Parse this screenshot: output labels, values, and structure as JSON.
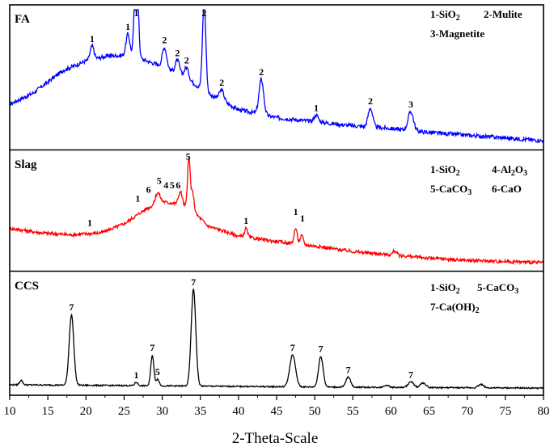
{
  "chart_data": {
    "type": "line",
    "xlabel": "2-Theta-Scale",
    "xlim": [
      10,
      80
    ],
    "x_ticks": [
      "10",
      "15",
      "20",
      "25",
      "30",
      "35",
      "40",
      "45",
      "50",
      "55",
      "60",
      "65",
      "70",
      "75",
      "80"
    ],
    "panels": [
      {
        "name": "FA",
        "color": "#0000ff",
        "legend": [
          "1-SiO2",
          "2-Mulite",
          "3-Magnetite"
        ],
        "baseline": [
          [
            10,
            0.3
          ],
          [
            13,
            0.38
          ],
          [
            17,
            0.55
          ],
          [
            20,
            0.62
          ],
          [
            23,
            0.66
          ],
          [
            26,
            0.66
          ],
          [
            28,
            0.62
          ],
          [
            30,
            0.58
          ],
          [
            33,
            0.5
          ],
          [
            36,
            0.38
          ],
          [
            40,
            0.26
          ],
          [
            45,
            0.2
          ],
          [
            50,
            0.17
          ],
          [
            55,
            0.14
          ],
          [
            60,
            0.12
          ],
          [
            65,
            0.09
          ],
          [
            70,
            0.07
          ],
          [
            75,
            0.05
          ],
          [
            80,
            0.03
          ]
        ],
        "peaks": [
          {
            "x": 20.8,
            "h": 0.1,
            "w": 0.25,
            "label": "1"
          },
          {
            "x": 25.5,
            "h": 0.16,
            "w": 0.25,
            "label": "1"
          },
          {
            "x": 26.6,
            "h": 0.96,
            "w": 0.22,
            "label": "1"
          },
          {
            "x": 30.3,
            "h": 0.15,
            "w": 0.28,
            "label": "2"
          },
          {
            "x": 32.0,
            "h": 0.1,
            "w": 0.28,
            "label": "2"
          },
          {
            "x": 33.2,
            "h": 0.08,
            "w": 0.28,
            "label": "2"
          },
          {
            "x": 35.5,
            "h": 0.66,
            "w": 0.22,
            "label": "2"
          },
          {
            "x": 37.8,
            "h": 0.08,
            "w": 0.3,
            "label": "2"
          },
          {
            "x": 43.0,
            "h": 0.26,
            "w": 0.3,
            "label": "2"
          },
          {
            "x": 50.2,
            "h": 0.05,
            "w": 0.3,
            "label": "1"
          },
          {
            "x": 57.3,
            "h": 0.14,
            "w": 0.3,
            "label": "2"
          },
          {
            "x": 62.6,
            "h": 0.14,
            "w": 0.35,
            "label": "3"
          }
        ]
      },
      {
        "name": "Slag",
        "color": "#ff0000",
        "legend": [
          "1-SiO2",
          "4-Al2O3",
          "5-CaCO3",
          "6-CaO"
        ],
        "baseline": [
          [
            10,
            0.34
          ],
          [
            14,
            0.3
          ],
          [
            18,
            0.28
          ],
          [
            22,
            0.3
          ],
          [
            25,
            0.38
          ],
          [
            28,
            0.52
          ],
          [
            30,
            0.58
          ],
          [
            32,
            0.56
          ],
          [
            34,
            0.5
          ],
          [
            36,
            0.36
          ],
          [
            40,
            0.27
          ],
          [
            45,
            0.22
          ],
          [
            50,
            0.18
          ],
          [
            55,
            0.13
          ],
          [
            60,
            0.1
          ],
          [
            65,
            0.07
          ],
          [
            70,
            0.05
          ],
          [
            75,
            0.04
          ],
          [
            80,
            0.03
          ]
        ],
        "peaks": [
          {
            "x": 29.4,
            "h": 0.1,
            "w": 0.3,
            "label": "5"
          },
          {
            "x": 32.4,
            "h": 0.12,
            "w": 0.25,
            "label": "6"
          },
          {
            "x": 33.5,
            "h": 0.46,
            "w": 0.18,
            "label": "5"
          },
          {
            "x": 34.0,
            "h": 0.16,
            "w": 0.18,
            "label": ""
          },
          {
            "x": 41.0,
            "h": 0.08,
            "w": 0.2,
            "label": "1"
          },
          {
            "x": 47.5,
            "h": 0.14,
            "w": 0.2,
            "label": "1"
          },
          {
            "x": 48.3,
            "h": 0.08,
            "w": 0.2,
            "label": "1"
          },
          {
            "x": 60.5,
            "h": 0.04,
            "w": 0.25,
            "label": ""
          }
        ],
        "extra_labels": [
          {
            "x": 20.5,
            "label": "1",
            "yv": 0.36
          },
          {
            "x": 26.8,
            "label": "1",
            "yv": 0.58
          },
          {
            "x": 28.2,
            "label": "6",
            "yv": 0.66
          },
          {
            "x": 29.6,
            "label": "5",
            "yv": 0.74
          },
          {
            "x": 30.5,
            "label": "4",
            "yv": 0.7
          },
          {
            "x": 31.3,
            "label": "5",
            "yv": 0.7
          },
          {
            "x": 32.1,
            "label": "6",
            "yv": 0.7
          },
          {
            "x": 33.4,
            "label": "5",
            "yv": 0.96
          },
          {
            "x": 41.0,
            "label": "1",
            "yv": 0.38
          },
          {
            "x": 47.5,
            "label": "1",
            "yv": 0.46
          },
          {
            "x": 48.4,
            "label": "1",
            "yv": 0.4
          }
        ]
      },
      {
        "name": "CCS",
        "color": "#000000",
        "legend": [
          "1-SiO2",
          "5-CaCO3",
          "7-Ca(OH)2"
        ],
        "baseline": [
          [
            10,
            0.05
          ],
          [
            30,
            0.04
          ],
          [
            50,
            0.03
          ],
          [
            80,
            0.02
          ]
        ],
        "peaks": [
          {
            "x": 11.5,
            "h": 0.04,
            "w": 0.2,
            "label": ""
          },
          {
            "x": 18.1,
            "h": 0.62,
            "w": 0.3,
            "label": "7"
          },
          {
            "x": 26.6,
            "h": 0.03,
            "w": 0.2,
            "label": "1"
          },
          {
            "x": 28.7,
            "h": 0.27,
            "w": 0.2,
            "label": "7"
          },
          {
            "x": 29.4,
            "h": 0.06,
            "w": 0.2,
            "label": "5"
          },
          {
            "x": 34.1,
            "h": 0.85,
            "w": 0.3,
            "label": "7"
          },
          {
            "x": 47.1,
            "h": 0.28,
            "w": 0.38,
            "label": "7"
          },
          {
            "x": 50.8,
            "h": 0.27,
            "w": 0.3,
            "label": "7"
          },
          {
            "x": 54.4,
            "h": 0.09,
            "w": 0.3,
            "label": "7"
          },
          {
            "x": 59.4,
            "h": 0.02,
            "w": 0.3,
            "label": ""
          },
          {
            "x": 62.6,
            "h": 0.05,
            "w": 0.35,
            "label": "7"
          },
          {
            "x": 64.2,
            "h": 0.04,
            "w": 0.35,
            "label": ""
          },
          {
            "x": 71.8,
            "h": 0.03,
            "w": 0.35,
            "label": ""
          }
        ]
      }
    ]
  }
}
